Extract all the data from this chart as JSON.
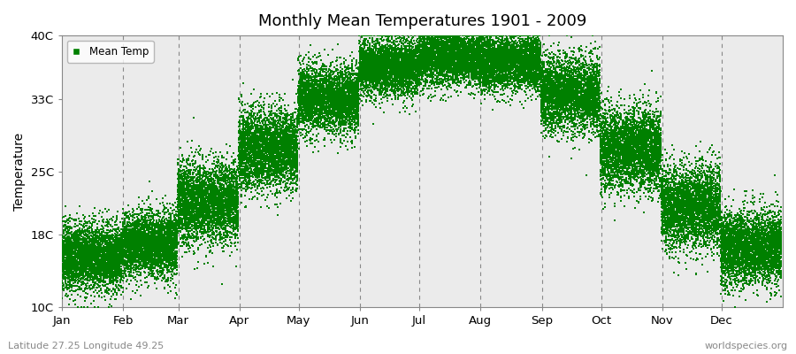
{
  "title": "Monthly Mean Temperatures 1901 - 2009",
  "ylabel": "Temperature",
  "ytick_labels": [
    "10C",
    "18C",
    "25C",
    "33C",
    "40C"
  ],
  "ytick_values": [
    10,
    18,
    25,
    33,
    40
  ],
  "ylim": [
    10,
    40
  ],
  "months": [
    "Jan",
    "Feb",
    "Mar",
    "Apr",
    "May",
    "Jun",
    "Jul",
    "Aug",
    "Sep",
    "Oct",
    "Nov",
    "Dec"
  ],
  "month_days": [
    31,
    28,
    31,
    30,
    31,
    30,
    31,
    31,
    30,
    31,
    30,
    31
  ],
  "dot_color": "#008000",
  "bg_color": "#ebebeb",
  "legend_label": "Mean Temp",
  "subtitle_left": "Latitude 27.25 Longitude 49.25",
  "subtitle_right": "worldspecies.org",
  "monthly_means": [
    15.5,
    17.0,
    21.5,
    27.5,
    33.0,
    36.5,
    37.5,
    37.0,
    33.5,
    27.5,
    21.0,
    16.5
  ],
  "monthly_stds": [
    1.8,
    1.8,
    2.2,
    2.2,
    1.8,
    1.5,
    1.5,
    1.5,
    2.0,
    2.2,
    2.2,
    2.0
  ],
  "n_years": 109,
  "seed": 42
}
